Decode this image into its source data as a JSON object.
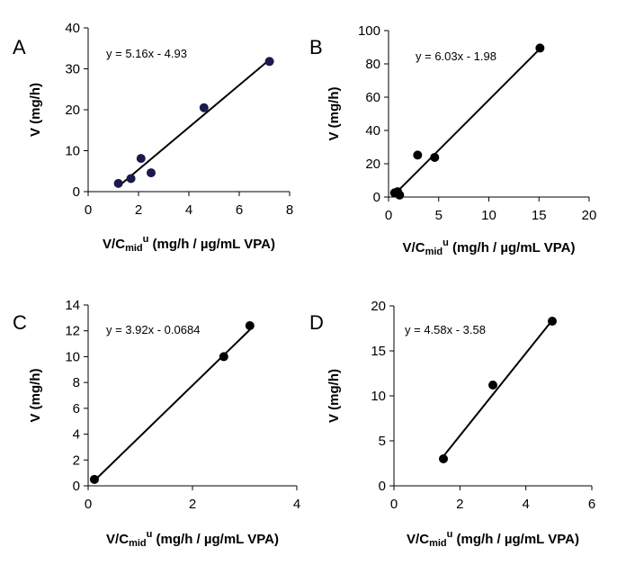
{
  "chart_data": [
    {
      "type": "scatter",
      "panel": "A",
      "equation": "y = 5.16x - 4.93",
      "xlabel": "V/C_mid^u (mg/h / µg/mL VPA)",
      "ylabel": "V (mg/h)",
      "xlim": [
        0,
        8
      ],
      "ylim": [
        0,
        40
      ],
      "xticks": [
        0,
        2,
        4,
        6,
        8
      ],
      "yticks": [
        0,
        10,
        20,
        30,
        40
      ],
      "points": [
        {
          "x": 1.2,
          "y": 2.0
        },
        {
          "x": 1.7,
          "y": 3.2
        },
        {
          "x": 2.1,
          "y": 8.1
        },
        {
          "x": 2.5,
          "y": 4.6
        },
        {
          "x": 4.6,
          "y": 20.5
        },
        {
          "x": 7.2,
          "y": 31.8
        }
      ],
      "fit": {
        "slope": 5.16,
        "intercept": -4.93,
        "x_range": [
          1.2,
          7.2
        ]
      },
      "marker_color": "#1a1a4e"
    },
    {
      "type": "scatter",
      "panel": "B",
      "equation": "y = 6.03x - 1.98",
      "xlabel": "V/C_mid^u (mg/h / µg/mL VPA)",
      "ylabel": "V (mg/h)",
      "xlim": [
        0,
        20
      ],
      "ylim": [
        0,
        100
      ],
      "xticks": [
        0,
        5,
        10,
        15,
        20
      ],
      "yticks": [
        0,
        20,
        40,
        60,
        80,
        100
      ],
      "points": [
        {
          "x": 0.6,
          "y": 2.5
        },
        {
          "x": 0.9,
          "y": 3.2
        },
        {
          "x": 1.1,
          "y": 1.2
        },
        {
          "x": 2.9,
          "y": 25.2
        },
        {
          "x": 4.6,
          "y": 23.8
        },
        {
          "x": 15.1,
          "y": 89.5
        }
      ],
      "fit": {
        "slope": 6.03,
        "intercept": -1.98,
        "x_range": [
          0.6,
          15.1
        ]
      },
      "marker_color": "#000000"
    },
    {
      "type": "scatter",
      "panel": "C",
      "equation": "y = 3.92x - 0.0684",
      "xlabel": "V/C_mid^u (mg/h / µg/mL VPA)",
      "ylabel": "V (mg/h)",
      "xlim": [
        0,
        4
      ],
      "ylim": [
        0,
        14
      ],
      "xticks": [
        0,
        2,
        4
      ],
      "yticks": [
        0,
        2,
        4,
        6,
        8,
        10,
        12,
        14
      ],
      "points": [
        {
          "x": 0.12,
          "y": 0.5
        },
        {
          "x": 2.6,
          "y": 10.0
        },
        {
          "x": 3.1,
          "y": 12.4
        }
      ],
      "fit": {
        "slope": 3.92,
        "intercept": -0.0684,
        "x_range": [
          0.12,
          3.1
        ]
      },
      "marker_color": "#000000"
    },
    {
      "type": "scatter",
      "panel": "D",
      "equation": "y = 4.58x - 3.58",
      "xlabel": "V/C_mid^u (mg/h / µg/mL VPA)",
      "ylabel": "V (mg/h)",
      "xlim": [
        0,
        6
      ],
      "ylim": [
        0,
        20
      ],
      "xticks": [
        0,
        2,
        4,
        6
      ],
      "yticks": [
        0,
        5,
        10,
        15,
        20
      ],
      "points": [
        {
          "x": 1.5,
          "y": 3.0
        },
        {
          "x": 3.0,
          "y": 11.2
        },
        {
          "x": 4.8,
          "y": 18.3
        }
      ],
      "fit": {
        "slope": 4.58,
        "intercept": -3.58,
        "x_range": [
          1.5,
          4.8
        ]
      },
      "marker_color": "#000000"
    }
  ]
}
